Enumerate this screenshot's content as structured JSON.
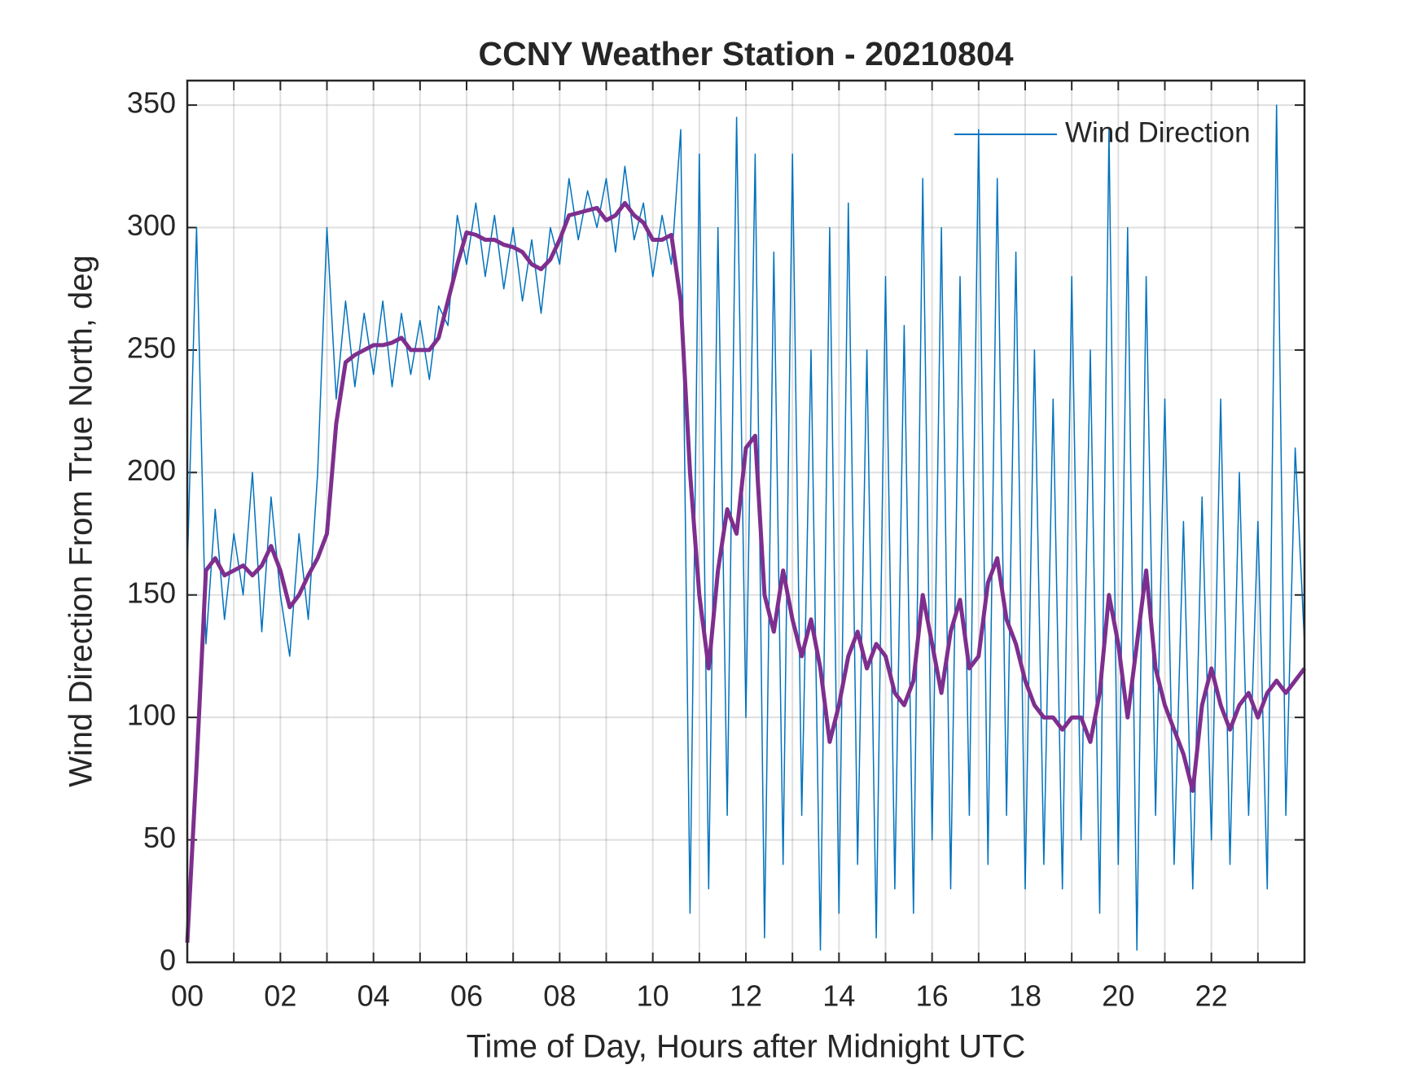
{
  "chart_data": {
    "type": "line",
    "title": "CCNY Weather Station - 20210804",
    "xlabel": "Time of Day, Hours after Midnight UTC",
    "ylabel": "Wind Direction From True North, deg",
    "xlim": [
      0,
      24
    ],
    "ylim": [
      0,
      360
    ],
    "xticks": [
      {
        "value": 0,
        "label": "00"
      },
      {
        "value": 2,
        "label": "02"
      },
      {
        "value": 4,
        "label": "04"
      },
      {
        "value": 6,
        "label": "06"
      },
      {
        "value": 8,
        "label": "08"
      },
      {
        "value": 10,
        "label": "10"
      },
      {
        "value": 12,
        "label": "12"
      },
      {
        "value": 14,
        "label": "14"
      },
      {
        "value": 16,
        "label": "16"
      },
      {
        "value": 18,
        "label": "18"
      },
      {
        "value": 20,
        "label": "20"
      },
      {
        "value": 22,
        "label": "22"
      }
    ],
    "xminor_ticks": [
      1,
      3,
      5,
      7,
      9,
      11,
      13,
      15,
      17,
      19,
      21,
      23
    ],
    "yticks": [
      0,
      50,
      100,
      150,
      200,
      250,
      300,
      350
    ],
    "grid": true,
    "legend": "top-right",
    "x": [
      0,
      0.2,
      0.4,
      0.6,
      0.8,
      1,
      1.2,
      1.4,
      1.6,
      1.8,
      2,
      2.2,
      2.4,
      2.6,
      2.8,
      3,
      3.2,
      3.4,
      3.6,
      3.8,
      4,
      4.2,
      4.4,
      4.6,
      4.8,
      5,
      5.2,
      5.4,
      5.6,
      5.8,
      6,
      6.2,
      6.4,
      6.6,
      6.8,
      7,
      7.2,
      7.4,
      7.6,
      7.8,
      8,
      8.2,
      8.4,
      8.6,
      8.8,
      9,
      9.2,
      9.4,
      9.6,
      9.8,
      10,
      10.2,
      10.4,
      10.6,
      10.8,
      11,
      11.2,
      11.4,
      11.6,
      11.8,
      12,
      12.2,
      12.4,
      12.6,
      12.8,
      13,
      13.2,
      13.4,
      13.6,
      13.8,
      14,
      14.2,
      14.4,
      14.6,
      14.8,
      15,
      15.2,
      15.4,
      15.6,
      15.8,
      16,
      16.2,
      16.4,
      16.6,
      16.8,
      17,
      17.2,
      17.4,
      17.6,
      17.8,
      18,
      18.2,
      18.4,
      18.6,
      18.8,
      19,
      19.2,
      19.4,
      19.6,
      19.8,
      20,
      20.2,
      20.4,
      20.6,
      20.8,
      21,
      21.2,
      21.4,
      21.6,
      21.8,
      22,
      22.2,
      22.4,
      22.6,
      22.8,
      23,
      23.2,
      23.4,
      23.6,
      23.8,
      24
    ],
    "series": [
      {
        "name": "Wind Direction",
        "color": "#0072bd",
        "width": 1.5,
        "values": [
          160,
          300,
          130,
          185,
          140,
          175,
          150,
          200,
          135,
          190,
          150,
          125,
          175,
          140,
          200,
          300,
          230,
          270,
          235,
          265,
          240,
          270,
          235,
          265,
          240,
          262,
          238,
          268,
          260,
          305,
          285,
          310,
          280,
          305,
          275,
          300,
          270,
          295,
          265,
          300,
          285,
          320,
          295,
          315,
          300,
          320,
          290,
          325,
          295,
          310,
          280,
          305,
          285,
          340,
          20,
          330,
          30,
          300,
          60,
          345,
          100,
          330,
          10,
          290,
          40,
          330,
          60,
          250,
          5,
          300,
          20,
          310,
          40,
          250,
          10,
          280,
          30,
          260,
          20,
          320,
          50,
          300,
          30,
          280,
          60,
          340,
          40,
          320,
          60,
          290,
          30,
          250,
          40,
          230,
          30,
          280,
          50,
          250,
          20,
          340,
          40,
          300,
          5,
          280,
          60,
          230,
          40,
          180,
          30,
          190,
          50,
          230,
          40,
          200,
          60,
          180,
          30,
          350,
          60,
          210,
          130
        ]
      },
      {
        "color": "#7e2f8e",
        "width": 5,
        "values": [
          8,
          80,
          160,
          165,
          158,
          160,
          162,
          158,
          162,
          170,
          160,
          145,
          150,
          158,
          165,
          175,
          220,
          245,
          248,
          250,
          252,
          252,
          253,
          255,
          250,
          250,
          250,
          255,
          270,
          285,
          298,
          297,
          295,
          295,
          293,
          292,
          290,
          285,
          283,
          287,
          295,
          305,
          306,
          307,
          308,
          303,
          305,
          310,
          305,
          302,
          295,
          295,
          297,
          270,
          200,
          150,
          120,
          160,
          185,
          175,
          210,
          215,
          150,
          135,
          160,
          140,
          125,
          140,
          120,
          90,
          105,
          125,
          135,
          120,
          130,
          125,
          110,
          105,
          115,
          150,
          130,
          110,
          135,
          148,
          120,
          125,
          155,
          165,
          140,
          130,
          115,
          105,
          100,
          100,
          95,
          100,
          100,
          90,
          110,
          150,
          130,
          100,
          130,
          160,
          120,
          105,
          95,
          85,
          70,
          105,
          120,
          105,
          95,
          105,
          110,
          100,
          110,
          115,
          110,
          115,
          120
        ]
      }
    ]
  }
}
